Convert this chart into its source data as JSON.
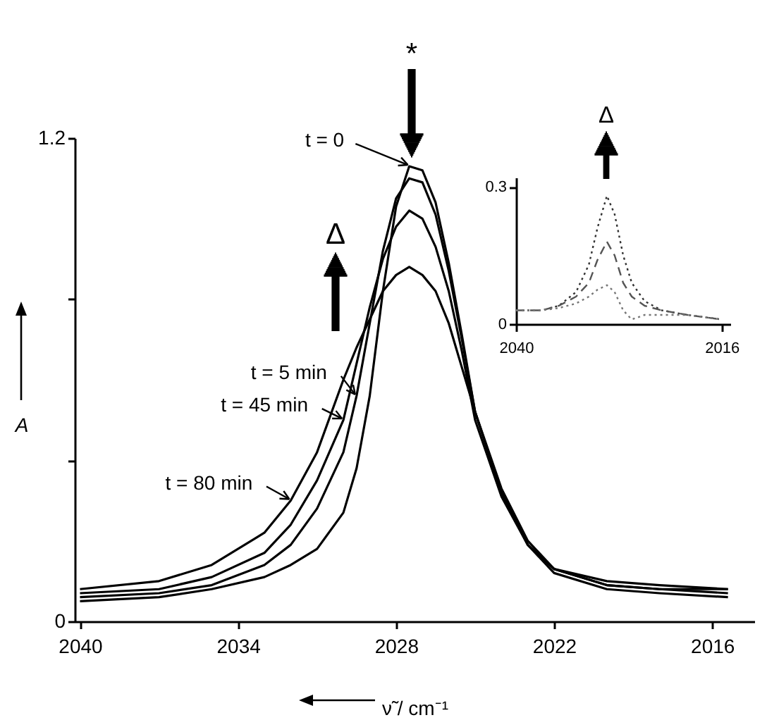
{
  "chart_data": [
    {
      "type": "line",
      "xlabel": "ν̃ / cm⁻¹",
      "ylabel": "A",
      "line_style": "solid",
      "x": [
        2040,
        2037,
        2035,
        2033,
        2032,
        2031,
        2030,
        2029.5,
        2029,
        2028.5,
        2028,
        2027.5,
        2027,
        2026.5,
        2026,
        2025.5,
        2025,
        2024,
        2023,
        2022,
        2020,
        2018,
        2015.4
      ],
      "series": [
        {
          "name": "t = 0",
          "color": "#000000",
          "values": [
            0.05,
            0.06,
            0.08,
            0.11,
            0.14,
            0.18,
            0.27,
            0.38,
            0.56,
            0.82,
            1.03,
            1.13,
            1.12,
            1.04,
            0.89,
            0.71,
            0.52,
            0.32,
            0.19,
            0.12,
            0.08,
            0.07,
            0.06
          ]
        },
        {
          "name": "t = 5 min",
          "color": "#000000",
          "values": [
            0.06,
            0.07,
            0.09,
            0.14,
            0.19,
            0.28,
            0.42,
            0.56,
            0.74,
            0.92,
            1.05,
            1.1,
            1.09,
            1.01,
            0.87,
            0.7,
            0.52,
            0.32,
            0.19,
            0.13,
            0.09,
            0.08,
            0.07
          ]
        },
        {
          "name": "t = 45 min",
          "color": "#000000",
          "values": [
            0.07,
            0.08,
            0.11,
            0.17,
            0.24,
            0.35,
            0.5,
            0.64,
            0.78,
            0.9,
            0.98,
            1.02,
            1.0,
            0.93,
            0.82,
            0.67,
            0.5,
            0.31,
            0.19,
            0.13,
            0.09,
            0.08,
            0.08
          ]
        },
        {
          "name": "t = 80 min",
          "color": "#000000",
          "values": [
            0.08,
            0.1,
            0.14,
            0.22,
            0.3,
            0.42,
            0.6,
            0.68,
            0.75,
            0.82,
            0.86,
            0.88,
            0.86,
            0.82,
            0.74,
            0.63,
            0.52,
            0.33,
            0.2,
            0.13,
            0.1,
            0.09,
            0.08
          ]
        }
      ],
      "xlim": [
        2040.2,
        2014.4
      ],
      "xticks": [
        2040,
        2034,
        2028,
        2022,
        2016
      ],
      "ylim": [
        0,
        1.2
      ],
      "yticks": [
        0,
        {
          "value": 0.4,
          "label": null
        },
        {
          "value": 0.8,
          "label": null
        },
        1.2
      ],
      "legend": "left",
      "annotations": [
        "*",
        "Δ"
      ]
    },
    {
      "type": "line",
      "x": [
        2040,
        2037,
        2035,
        2033,
        2031.5,
        2030.5,
        2029.4,
        2028.5,
        2027.5,
        2026.5,
        2025,
        2023,
        2020,
        2016
      ],
      "series": [
        {
          "color": "#333333",
          "line_style": "dotted",
          "values": [
            0.03,
            0.03,
            0.04,
            0.07,
            0.13,
            0.21,
            0.28,
            0.24,
            0.15,
            0.09,
            0.05,
            0.03,
            0.02,
            0.01
          ]
        },
        {
          "color": "#555555",
          "line_style": "dashed",
          "values": [
            0.03,
            0.03,
            0.04,
            0.06,
            0.09,
            0.14,
            0.18,
            0.15,
            0.09,
            0.06,
            0.04,
            0.03,
            0.02,
            0.01
          ]
        },
        {
          "color": "#777777",
          "line_style": "dotted",
          "values": [
            0.03,
            0.03,
            0.035,
            0.045,
            0.06,
            0.075,
            0.085,
            0.07,
            0.03,
            0.01,
            0.02,
            0.02,
            0.02,
            0.01
          ]
        }
      ],
      "xlim": [
        2040,
        2015
      ],
      "xticks": [
        2040,
        2016
      ],
      "ylim": [
        0,
        0.32
      ],
      "yticks": [
        0,
        0.3
      ],
      "annotations": [
        "Δ"
      ]
    }
  ]
}
